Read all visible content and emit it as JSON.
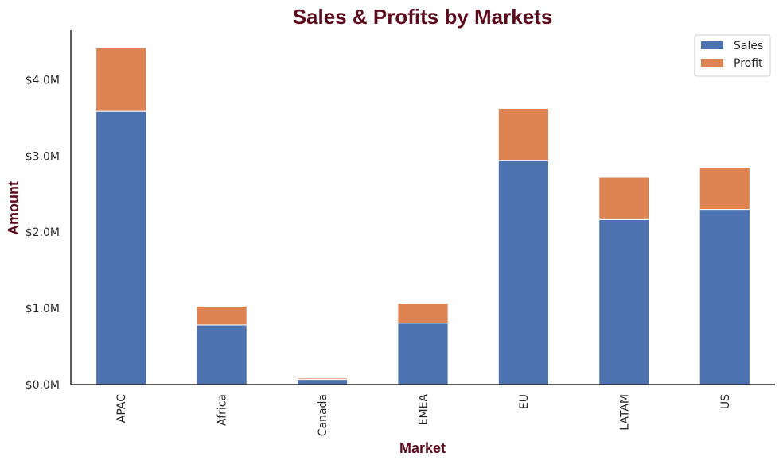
{
  "chart_data": {
    "type": "bar",
    "stacked": true,
    "title": "Sales & Profits by Markets",
    "xlabel": "Market",
    "ylabel": "Amount",
    "categories": [
      "APAC",
      "Africa",
      "Canada",
      "EMEA",
      "EU",
      "LATAM",
      "US"
    ],
    "series": [
      {
        "name": "Sales",
        "color": "#4c72b0",
        "values": [
          3585000,
          783000,
          66900,
          806000,
          2938000,
          2165000,
          2298000
        ]
      },
      {
        "name": "Profit",
        "color": "#dd8452",
        "values": [
          832000,
          245000,
          17800,
          260000,
          686000,
          556000,
          553000
        ]
      }
    ],
    "ylim": [
      0,
      4650000
    ],
    "yticks": [
      0,
      1000000,
      2000000,
      3000000,
      4000000
    ],
    "ytick_labels": [
      "$0.0M",
      "$1.0M",
      "$2.0M",
      "$3.0M",
      "$4.0M"
    ],
    "grid": false,
    "legend": "top-right"
  }
}
